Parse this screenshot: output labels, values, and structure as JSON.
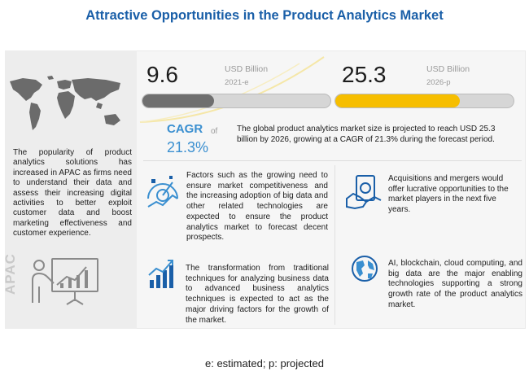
{
  "title": "Attractive Opportunities in the Product Analytics Market",
  "left_panel": {
    "text": "The popularity of product analytics solutions has increased in APAC as firms need to understand their data and assess their increasing digital activities to better exploit customer data and boost marketing effectiveness and customer experience.",
    "region_label": "APAC"
  },
  "stat_2021": {
    "value": "9.6",
    "unit": "USD Billion",
    "year": "2021-e",
    "fill_fraction": 0.38
  },
  "stat_2026": {
    "value": "25.3",
    "unit": "USD Billion",
    "year": "2026-p",
    "fill_fraction": 0.7
  },
  "cagr": {
    "label": "CAGR",
    "of": "of",
    "value": "21.3%"
  },
  "market_text": "The global product analytics market size is projected to reach USD 25.3 billion by 2026, growing at a CAGR of 21.3% during the forecast period.",
  "insights": [
    {
      "icon": "target-gauge-icon",
      "text": "Factors such as the growing need to ensure market competitiveness and the increasing adoption of big data and other related technologies are expected to ensure the product analytics market to forecast decent prospects."
    },
    {
      "icon": "handshake-money-icon",
      "text": "Acquisitions and mergers would offer lucrative opportunities to the market players in the next five years."
    },
    {
      "icon": "growth-chart-icon",
      "text": "The transformation from traditional techniques for analyzing business data to advanced business analytics techniques is expected to act as the major driving factors for the growth of the market."
    },
    {
      "icon": "globe-icon",
      "text": "AI, blockchain, cloud computing, and big data are the major enabling technologies supporting a strong growth rate of the product analytics market."
    }
  ],
  "footnote": "e: estimated; p: projected",
  "colors": {
    "title": "#1a5fa8",
    "accent_blue": "#3a8fd0",
    "bar_grey": "#6f6f6f",
    "bar_yellow": "#f6be00"
  }
}
